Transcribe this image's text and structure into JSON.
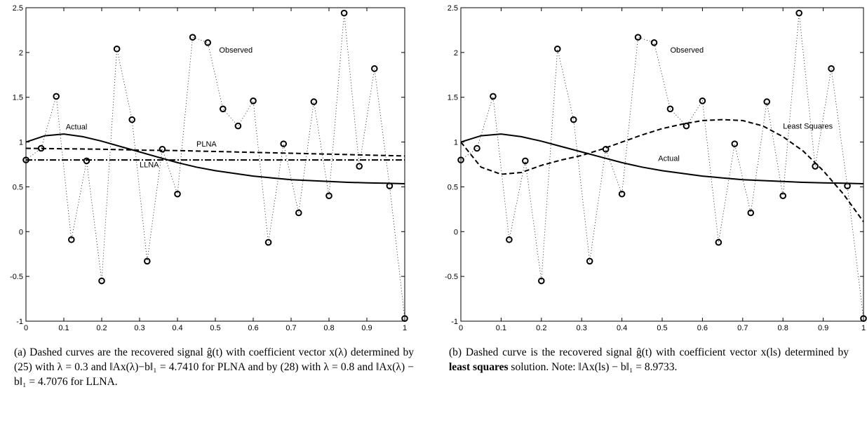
{
  "chart_data": [
    {
      "type": "line",
      "caption": [
        "(a) Dashed curves are the recovered signal ĝ(t) with coefficient vector x(λ) determined by (25) with λ = 0.3 and ‖Ax(λ)−b‖₁ = 4.7410 for PLNA and by (28) with λ = 0.8 and ‖Ax(λ) − b‖₁ = 4.7076 for LLNA."
      ],
      "xlim": [
        0,
        1
      ],
      "ylim": [
        -1,
        2.5
      ],
      "xticks": [
        0,
        0.1,
        0.2,
        0.3,
        0.4,
        0.5,
        0.6,
        0.7,
        0.8,
        0.9,
        1
      ],
      "yticks": [
        -1,
        -0.5,
        0,
        0.5,
        1,
        1.5,
        2,
        2.5
      ],
      "series": [
        {
          "name": "Observed",
          "color": "#000000",
          "style": "dotted",
          "marker": "o",
          "x": [
            0,
            0.04,
            0.08,
            0.12,
            0.16,
            0.2,
            0.24,
            0.28,
            0.32,
            0.36,
            0.4,
            0.44,
            0.48,
            0.52,
            0.56,
            0.6,
            0.64,
            0.68,
            0.72,
            0.76,
            0.8,
            0.84,
            0.88,
            0.92,
            0.96,
            1
          ],
          "values": [
            0.8,
            0.93,
            1.51,
            -0.09,
            0.79,
            -0.55,
            2.04,
            1.25,
            -0.33,
            0.92,
            0.42,
            2.17,
            2.11,
            1.37,
            1.18,
            1.46,
            -0.12,
            0.98,
            0.21,
            1.45,
            0.4,
            2.44,
            0.73,
            1.82,
            0.51,
            -0.97
          ]
        },
        {
          "name": "Actual",
          "color": "#000000",
          "style": "solid",
          "x": [
            0,
            0.05,
            0.1,
            0.15,
            0.2,
            0.25,
            0.3,
            0.35,
            0.4,
            0.45,
            0.5,
            0.55,
            0.6,
            0.65,
            0.7,
            0.75,
            0.8,
            0.85,
            0.9,
            0.95,
            1
          ],
          "values": [
            1.0,
            1.07,
            1.09,
            1.06,
            1.01,
            0.95,
            0.89,
            0.83,
            0.77,
            0.72,
            0.68,
            0.65,
            0.62,
            0.6,
            0.58,
            0.57,
            0.56,
            0.55,
            0.545,
            0.54,
            0.535
          ]
        },
        {
          "name": "PLNA",
          "color": "#000000",
          "style": "dashed",
          "x": [
            0,
            0.1,
            0.2,
            0.3,
            0.4,
            0.5,
            0.6,
            0.7,
            0.8,
            0.9,
            1
          ],
          "values": [
            0.93,
            0.925,
            0.92,
            0.91,
            0.905,
            0.895,
            0.885,
            0.875,
            0.865,
            0.855,
            0.845
          ]
        },
        {
          "name": "LLNA",
          "color": "#000000",
          "style": "dashdot",
          "x": [
            0,
            1
          ],
          "values": [
            0.8,
            0.8
          ]
        }
      ]
    },
    {
      "type": "line",
      "caption": [
        "(b) Dashed curve is the recovered signal ĝ(t) with coefficient vector x(ls) determined by ",
        "least squares",
        " solution. Note: ‖Ax(ls) − b‖₁ = 8.9733."
      ],
      "xlim": [
        0,
        1
      ],
      "ylim": [
        -1,
        2.5
      ],
      "xticks": [
        0,
        0.1,
        0.2,
        0.3,
        0.4,
        0.5,
        0.6,
        0.7,
        0.8,
        0.9,
        1
      ],
      "yticks": [
        -1,
        -0.5,
        0,
        0.5,
        1,
        1.5,
        2,
        2.5
      ],
      "series": [
        {
          "name": "Observed",
          "color": "#000000",
          "style": "dotted",
          "marker": "o",
          "x": [
            0,
            0.04,
            0.08,
            0.12,
            0.16,
            0.2,
            0.24,
            0.28,
            0.32,
            0.36,
            0.4,
            0.44,
            0.48,
            0.52,
            0.56,
            0.6,
            0.64,
            0.68,
            0.72,
            0.76,
            0.8,
            0.84,
            0.88,
            0.92,
            0.96,
            1
          ],
          "values": [
            0.8,
            0.93,
            1.51,
            -0.09,
            0.79,
            -0.55,
            2.04,
            1.25,
            -0.33,
            0.92,
            0.42,
            2.17,
            2.11,
            1.37,
            1.18,
            1.46,
            -0.12,
            0.98,
            0.21,
            1.45,
            0.4,
            2.44,
            0.73,
            1.82,
            0.51,
            -0.97
          ]
        },
        {
          "name": "Actual",
          "color": "#000000",
          "style": "solid",
          "x": [
            0,
            0.05,
            0.1,
            0.15,
            0.2,
            0.25,
            0.3,
            0.35,
            0.4,
            0.45,
            0.5,
            0.55,
            0.6,
            0.65,
            0.7,
            0.75,
            0.8,
            0.85,
            0.9,
            0.95,
            1
          ],
          "values": [
            1.0,
            1.07,
            1.09,
            1.06,
            1.01,
            0.95,
            0.89,
            0.83,
            0.77,
            0.72,
            0.68,
            0.65,
            0.62,
            0.6,
            0.58,
            0.57,
            0.56,
            0.55,
            0.545,
            0.54,
            0.535
          ]
        },
        {
          "name": "Least Squares",
          "color": "#000000",
          "style": "dashed",
          "x": [
            0,
            0.05,
            0.1,
            0.15,
            0.2,
            0.25,
            0.3,
            0.35,
            0.4,
            0.45,
            0.5,
            0.55,
            0.6,
            0.65,
            0.7,
            0.75,
            0.8,
            0.85,
            0.9,
            0.95,
            1
          ],
          "values": [
            1.0,
            0.72,
            0.64,
            0.66,
            0.74,
            0.8,
            0.85,
            0.92,
            1.0,
            1.08,
            1.15,
            1.2,
            1.24,
            1.25,
            1.24,
            1.18,
            1.06,
            0.9,
            0.68,
            0.42,
            0.11
          ]
        }
      ]
    }
  ]
}
